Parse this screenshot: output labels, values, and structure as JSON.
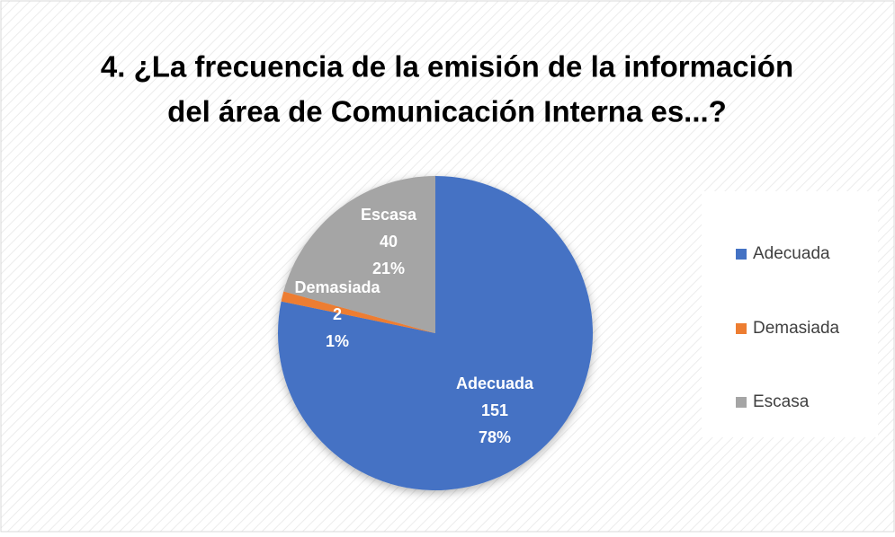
{
  "chart_data": {
    "type": "pie",
    "title": [
      "4. ¿La frecuencia de la emisión de la información",
      "del área de Comunicación Interna es...?"
    ],
    "categories": [
      "Adecuada",
      "Demasiada",
      "Escasa"
    ],
    "values": [
      151,
      2,
      40
    ],
    "percent_labels": [
      "78%",
      "1%",
      "21%"
    ],
    "colors": [
      "#4472c4",
      "#ed7d31",
      "#a5a5a5"
    ],
    "legend": "right"
  }
}
